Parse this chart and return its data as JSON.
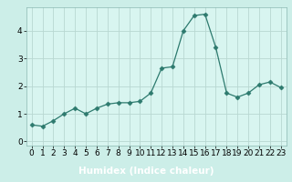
{
  "x": [
    0,
    1,
    2,
    3,
    4,
    5,
    6,
    7,
    8,
    9,
    10,
    11,
    12,
    13,
    14,
    15,
    16,
    17,
    18,
    19,
    20,
    21,
    22,
    23
  ],
  "y": [
    0.6,
    0.55,
    0.75,
    1.0,
    1.2,
    1.0,
    1.2,
    1.35,
    1.4,
    1.4,
    1.45,
    1.75,
    2.65,
    2.7,
    4.0,
    4.55,
    4.6,
    3.4,
    1.75,
    1.6,
    1.75,
    2.05,
    2.15,
    1.95
  ],
  "line_color": "#2d7a6e",
  "marker": "D",
  "marker_size": 2.5,
  "bg_color": "#cceee8",
  "plot_bg_color": "#d8f5f0",
  "grid_color": "#b8d8d2",
  "xlabel": "Humidex (Indice chaleur)",
  "ylabel": "",
  "xlim": [
    -0.5,
    23.5
  ],
  "ylim": [
    -0.15,
    4.85
  ],
  "yticks": [
    0,
    1,
    2,
    3,
    4
  ],
  "xticks": [
    0,
    1,
    2,
    3,
    4,
    5,
    6,
    7,
    8,
    9,
    10,
    11,
    12,
    13,
    14,
    15,
    16,
    17,
    18,
    19,
    20,
    21,
    22,
    23
  ],
  "xlabel_fontsize": 7.5,
  "tick_fontsize": 6.5,
  "bottom_bar_color": "#2d7a6e",
  "bottom_bar_height": 0.13
}
